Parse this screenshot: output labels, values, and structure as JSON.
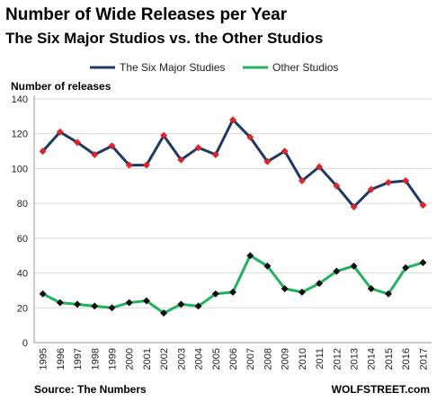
{
  "title": "Number of Wide Releases per Year",
  "subtitle": "The Six Major Studios vs. the Other Studios",
  "source": "Source: The Numbers",
  "brand": "WOLFSTREET.com",
  "chart_data": {
    "type": "line",
    "ylabel": "Number of releases",
    "xlabel": "",
    "ylim": [
      0,
      140
    ],
    "yticks": [
      0,
      20,
      40,
      60,
      80,
      100,
      120,
      140
    ],
    "grid": true,
    "legend_position": "top-center",
    "x": [
      "1995",
      "1996",
      "1997",
      "1998",
      "1999",
      "2000",
      "2001",
      "2002",
      "2003",
      "2004",
      "2005",
      "2006",
      "2007",
      "2008",
      "2009",
      "2010",
      "2011",
      "2012",
      "2013",
      "2014",
      "2015",
      "2016",
      "2017"
    ],
    "series": [
      {
        "name": "The Six Major Studies",
        "color": "#1f3864",
        "marker_color": "#d9262b",
        "values": [
          110,
          121,
          115,
          108,
          113,
          102,
          102,
          119,
          105,
          112,
          108,
          128,
          118,
          104,
          110,
          93,
          101,
          90,
          78,
          88,
          92,
          93,
          79
        ]
      },
      {
        "name": "Other Studios",
        "color": "#1fb35a",
        "marker_color": "#111111",
        "values": [
          28,
          23,
          22,
          21,
          20,
          23,
          24,
          17,
          22,
          21,
          28,
          29,
          50,
          44,
          31,
          29,
          34,
          41,
          44,
          31,
          28,
          43,
          46
        ]
      }
    ]
  }
}
